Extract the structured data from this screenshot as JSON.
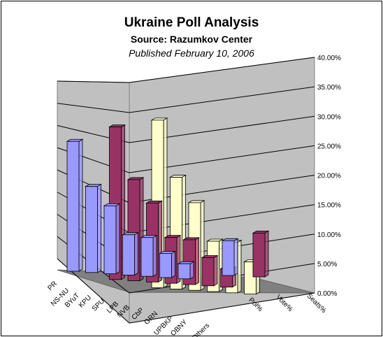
{
  "chart_data": {
    "type": "bar",
    "title": "Ukraine Poll Analysis",
    "subtitle": "Source: Razumkov Center",
    "subtitle2": "Published February 10, 2006",
    "categories": [
      "PR",
      "NS-NU",
      "BYuT",
      "KPU",
      "SPU",
      "LPB",
      "NVB",
      "CbP",
      "GRN",
      "UPBKP",
      "OBNY",
      "Others"
    ],
    "summary_categories": [
      "Pol%",
      "Vote%",
      "Seats%"
    ],
    "series": [
      {
        "name": "Pol%",
        "values": [
          25.8,
          17.1,
          13.5,
          8.0,
          7.7,
          4.8,
          3.0,
          0,
          0,
          0,
          0,
          0
        ],
        "summary": [
          6.9,
          0,
          0
        ],
        "color": "#9999ff"
      },
      {
        "name": "Vote%",
        "values": [
          0,
          30.3,
          20.1,
          15.7,
          9.1,
          8.9,
          5.6,
          3.6,
          0,
          0,
          0,
          0
        ],
        "summary": [
          0,
          8.7,
          0
        ],
        "color": "#993366"
      },
      {
        "name": "Seats%",
        "values": [
          0,
          0,
          33.3,
          22.2,
          17.4,
          10.0,
          10.0,
          6.4,
          0,
          0,
          0,
          0
        ],
        "summary": [
          0,
          0,
          0
        ],
        "color": "#ffffcc"
      }
    ],
    "ylim": [
      0,
      40
    ],
    "yticks": [
      "0.00%",
      "5.00%",
      "10.00%",
      "15.00%",
      "20.00%",
      "25.00%",
      "30.00%",
      "35.00%",
      "40.00%"
    ],
    "grid": true
  }
}
